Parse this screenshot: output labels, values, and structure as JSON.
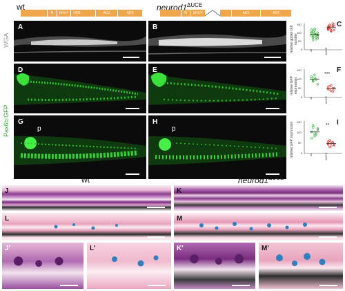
{
  "genotypes": {
    "wt": "wt",
    "mutant_base": "neurod1",
    "mutant_sup": "ΔUCE"
  },
  "domains": [
    "N",
    "bHLH",
    "UCE",
    "AD1",
    "AD2"
  ],
  "side_labels": {
    "wga": "WGA",
    "pax6b": "Pax6b:GFP"
  },
  "panels": {
    "A": "A",
    "B": "B",
    "C": "C",
    "D": "D",
    "E": "E",
    "F": "F",
    "G": "G",
    "H": "H",
    "I": "I",
    "J": "J",
    "K": "K",
    "L": "L",
    "M": "M",
    "J1": "J'",
    "L1": "L'",
    "K1": "K'",
    "M1": "M'"
  },
  "p_label": "p",
  "histo_headers": {
    "wt": "wt",
    "mutant_base": "neurod1",
    "mutant_sup": "ΔUCE"
  },
  "plots": {
    "C": {
      "ylabel": "relative goblet cell number",
      "yticks": [
        "150",
        "100",
        "50",
        "0"
      ],
      "sig": "*",
      "categories": [
        "wt",
        "ΔUCE"
      ],
      "wt_color": "#2ca02c",
      "mut_color": "#e0302a"
    },
    "F": {
      "ylabel": "relative GFP expression",
      "yticks": [
        "150",
        "100",
        "50",
        "0"
      ],
      "sig": "***",
      "categories": [
        "wt",
        "ΔUCE"
      ],
      "wt_color": "#2ca02c",
      "mut_color": "#e0302a"
    },
    "I": {
      "ylabel": "relative GFP expression",
      "yticks": [
        "150",
        "100",
        "50",
        "0"
      ],
      "sig": "**",
      "categories": [
        "wt",
        "ΔUCE"
      ],
      "wt_color": "#2ca02c",
      "mut_color": "#e0302a"
    }
  },
  "plot_values": {
    "C": {
      "wt": [
        95,
        70,
        110,
        60,
        85,
        100,
        75,
        120,
        90,
        65,
        80,
        105,
        88,
        72,
        98,
        115,
        55,
        92,
        84,
        78
      ],
      "mut": [
        120,
        140,
        105,
        150,
        130,
        115,
        125,
        110,
        135,
        145,
        118,
        128,
        122,
        138,
        112,
        132,
        142,
        108
      ]
    },
    "F": {
      "wt": [
        100,
        85,
        120,
        95,
        70,
        110,
        90,
        105
      ],
      "mut": [
        55,
        40,
        65,
        30,
        50,
        45,
        60,
        35,
        48,
        42
      ]
    },
    "I": {
      "wt": [
        100,
        130,
        80,
        95,
        115,
        70,
        120,
        90,
        85,
        110
      ],
      "mut": [
        45,
        60,
        35,
        50,
        40,
        55,
        30,
        48,
        52,
        38,
        42,
        58
      ]
    }
  }
}
